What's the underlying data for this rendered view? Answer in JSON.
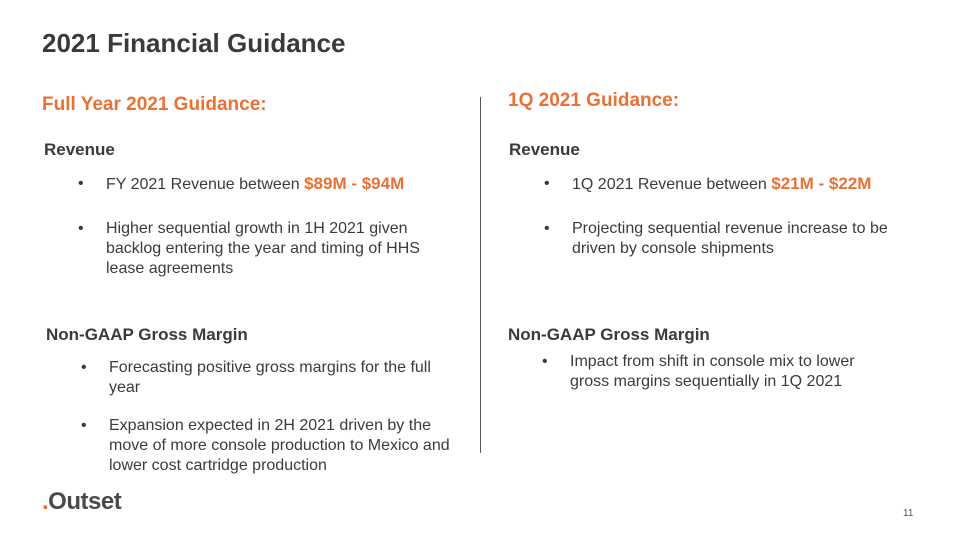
{
  "slide": {
    "title": "2021 Financial Guidance",
    "page_number": "11",
    "logo": {
      "dot": ".",
      "text": "Outset"
    },
    "accent_color": "#ea7134"
  },
  "left": {
    "heading": "Full Year 2021 Guidance:",
    "revenue": {
      "heading": "Revenue",
      "bullet1_prefix": "FY 2021 Revenue between ",
      "bullet1_highlight": "$89M - $94M",
      "bullet2": "Higher sequential growth in 1H 2021 given backlog entering the year and timing of HHS lease agreements"
    },
    "margin": {
      "heading": "Non-GAAP Gross Margin",
      "bullet1": "Forecasting positive gross margins for the full year",
      "bullet2": "Expansion expected in 2H 2021 driven by the move of more console production to Mexico and lower cost cartridge production"
    }
  },
  "right": {
    "heading": "1Q 2021 Guidance:",
    "revenue": {
      "heading": "Revenue",
      "bullet1_prefix": "1Q 2021 Revenue between ",
      "bullet1_highlight": "$21M - $22M",
      "bullet2": "Projecting sequential revenue increase to be driven by console shipments"
    },
    "margin": {
      "heading": "Non-GAAP Gross Margin",
      "bullet1": "Impact from shift in console mix to lower gross margins sequentially in 1Q 2021"
    }
  }
}
